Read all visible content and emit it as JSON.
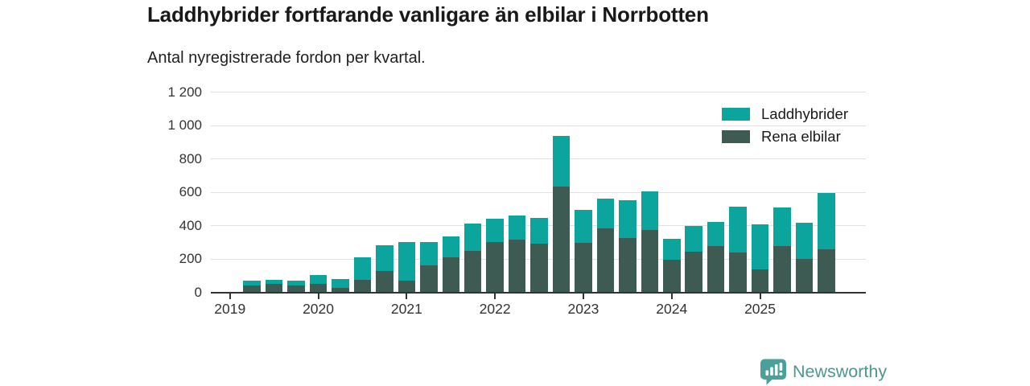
{
  "header": {
    "title": "Laddhybrider fortfarande vanligare än elbilar i Norrbotten",
    "subtitle": "Antal nyregistrerade fordon per kvartal."
  },
  "colors": {
    "laddhybrider": "#0ba59d",
    "rena_elbilar": "#3d5a53",
    "grid": "#e1e1e1",
    "axis": "#333333",
    "text": "#191919",
    "logo_mark": "#4aa19a",
    "logo_text": "#4f968f"
  },
  "legend": {
    "items": [
      {
        "label": "Laddhybrider",
        "color_key": "laddhybrider"
      },
      {
        "label": "Rena elbilar",
        "color_key": "rena_elbilar"
      }
    ]
  },
  "chart_data": {
    "type": "bar",
    "stacked": true,
    "title": "Laddhybrider fortfarande vanligare än elbilar i Norrbotten",
    "subtitle": "Antal nyregistrerade fordon per kvartal.",
    "xlabel": "",
    "ylabel": "",
    "ylim": [
      0,
      1200
    ],
    "grid": "horizontal",
    "legend_position": "top-right",
    "categories": [
      "2019 Q1",
      "2019 Q2",
      "2019 Q3",
      "2019 Q4",
      "2020 Q1",
      "2020 Q2",
      "2020 Q3",
      "2020 Q4",
      "2021 Q1",
      "2021 Q2",
      "2021 Q3",
      "2021 Q4",
      "2022 Q1",
      "2022 Q2",
      "2022 Q3",
      "2022 Q4",
      "2023 Q1",
      "2023 Q2",
      "2023 Q3",
      "2023 Q4",
      "2024 Q1",
      "2024 Q2",
      "2024 Q3",
      "2024 Q4",
      "2025 Q1",
      "2025 Q2",
      "2025 Q3",
      "2025 Q4"
    ],
    "series": [
      {
        "name": "Rena elbilar",
        "color": "#3d5a53",
        "values": [
          0,
          40,
          50,
          40,
          50,
          25,
          75,
          130,
          70,
          160,
          210,
          250,
          300,
          315,
          290,
          635,
          295,
          385,
          325,
          375,
          195,
          245,
          275,
          240,
          135,
          275,
          200,
          260
        ]
      },
      {
        "name": "Laddhybrider",
        "color": "#0ba59d",
        "values": [
          0,
          30,
          25,
          30,
          55,
          55,
          135,
          150,
          230,
          140,
          125,
          160,
          140,
          145,
          155,
          300,
          200,
          175,
          225,
          230,
          125,
          155,
          145,
          275,
          270,
          235,
          215,
          335
        ]
      }
    ],
    "y_ticks": [
      0,
      200,
      400,
      600,
      800,
      1000,
      1200
    ],
    "y_tick_labels": [
      "0",
      "200",
      "400",
      "600",
      "800",
      "1 000",
      "1 200"
    ],
    "x_tick_labels": [
      "2019",
      "2020",
      "2021",
      "2022",
      "2023",
      "2024",
      "2025"
    ]
  },
  "logo": {
    "text": "Newsworthy"
  }
}
